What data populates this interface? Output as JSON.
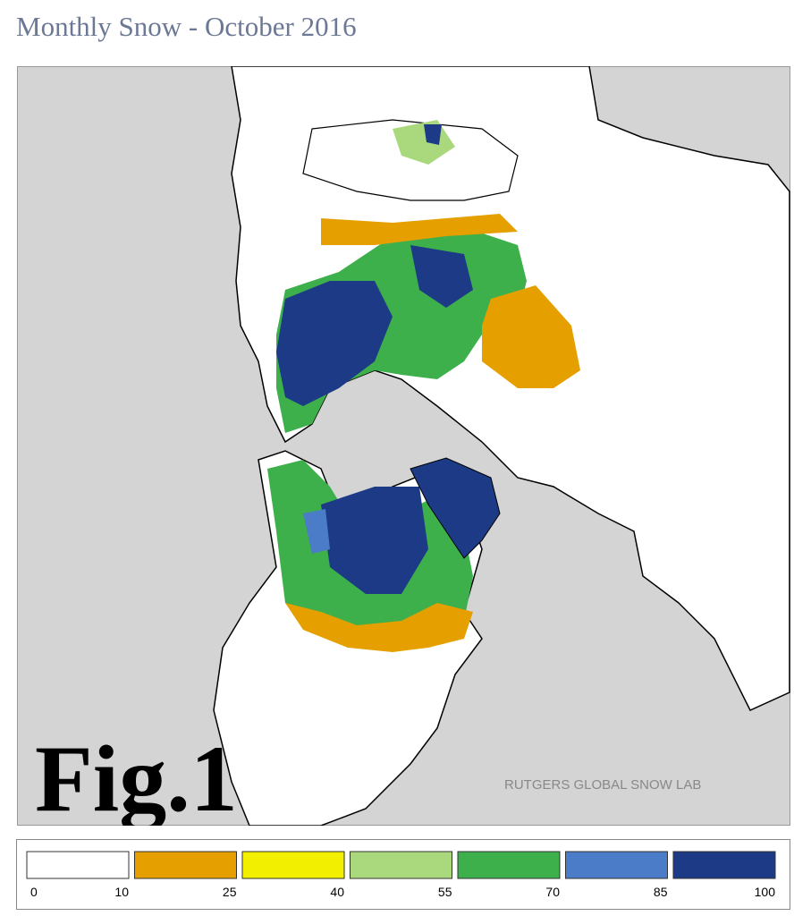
{
  "header": {
    "title": "Monthly Snow - October 2016"
  },
  "map": {
    "figure_label": "Fig.1",
    "credit": "RUTGERS GLOBAL SNOW LAB"
  },
  "legend": {
    "colors": [
      "#ffffff",
      "#e5a000",
      "#f2f000",
      "#a9d97c",
      "#3db04c",
      "#4a7cc7",
      "#1c3a86"
    ],
    "labels": [
      0,
      10,
      25,
      40,
      55,
      70,
      85,
      100
    ]
  }
}
